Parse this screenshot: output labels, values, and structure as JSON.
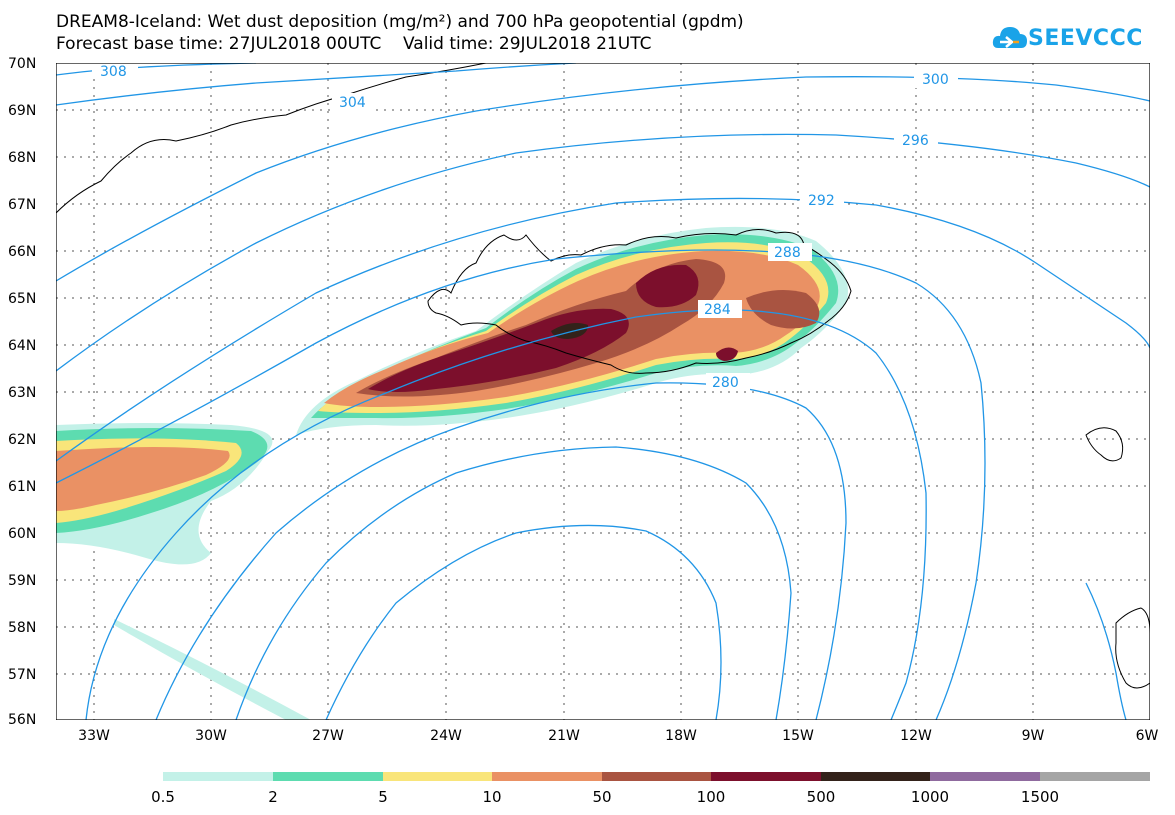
{
  "title_line1": "DREAM8-Iceland: Wet dust deposition (mg/m²) and 700 hPa geopotential (gpdm)",
  "title_line2": "Forecast base time: 27JUL2018 00UTC    Valid time: 29JUL2018 21UTC",
  "logo_text": "SEEVCCC",
  "lat_labels": [
    "70N",
    "69N",
    "68N",
    "67N",
    "66N",
    "65N",
    "64N",
    "63N",
    "62N",
    "61N",
    "60N",
    "59N",
    "58N",
    "57N",
    "56N"
  ],
  "lon_labels": [
    "33W",
    "30W",
    "27W",
    "24W",
    "21W",
    "18W",
    "15W",
    "12W",
    "9W",
    "6W"
  ],
  "contour_labels": [
    "308",
    "304",
    "300",
    "296",
    "292",
    "288",
    "284",
    "280"
  ],
  "legend": {
    "labels": [
      "0.5",
      "2",
      "5",
      "10",
      "50",
      "100",
      "500",
      "1000",
      "1500"
    ],
    "colors": [
      "#c3f1e8",
      "#5ddcb0",
      "#f9e57a",
      "#ea9164",
      "#a95441",
      "#7c0f2c",
      "#33221a",
      "#8f6a9e",
      "#a5a5a5"
    ]
  },
  "colors": {
    "contour": "#2196e6",
    "coast": "#000000",
    "logo": "#1aa3e8"
  }
}
